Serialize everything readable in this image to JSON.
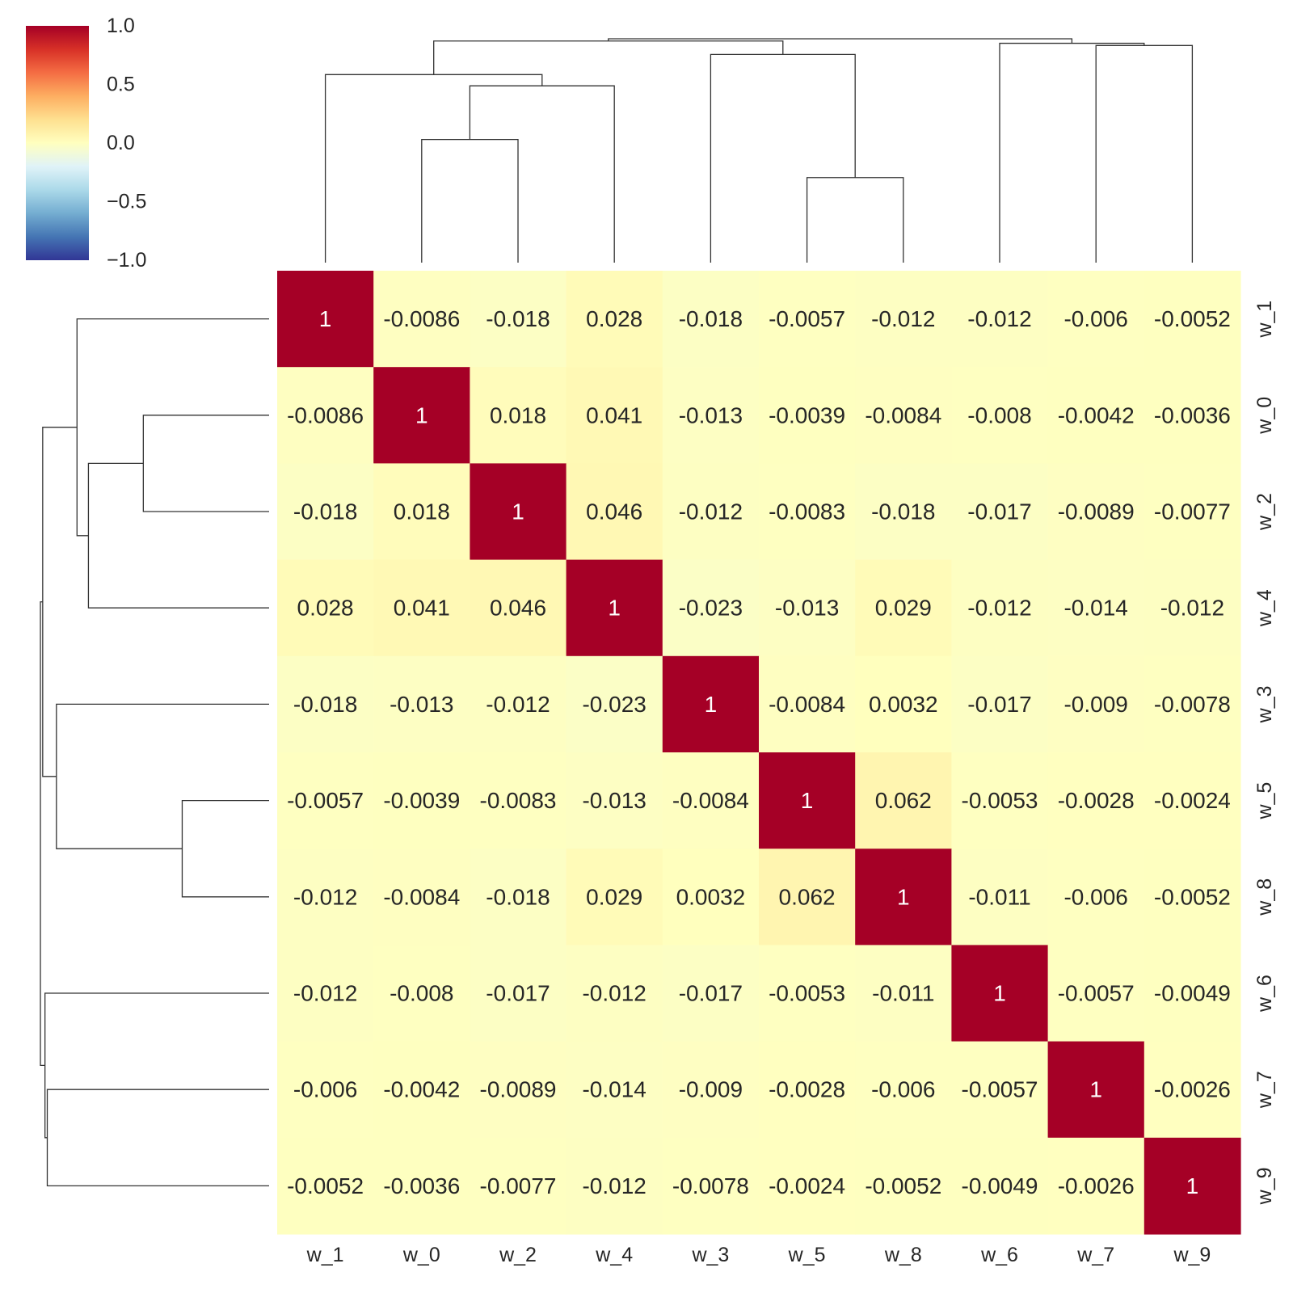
{
  "chart_data": {
    "type": "heatmap",
    "subtype": "clustermap",
    "labels": [
      "w_1",
      "w_0",
      "w_2",
      "w_4",
      "w_3",
      "w_5",
      "w_8",
      "w_6",
      "w_7",
      "w_9"
    ],
    "row_labels": [
      "w_1",
      "w_0",
      "w_2",
      "w_4",
      "w_3",
      "w_5",
      "w_8",
      "w_6",
      "w_7",
      "w_9"
    ],
    "col_labels": [
      "w_1",
      "w_0",
      "w_2",
      "w_4",
      "w_3",
      "w_5",
      "w_8",
      "w_6",
      "w_7",
      "w_9"
    ],
    "values": [
      [
        1,
        -0.0086,
        -0.018,
        0.028,
        -0.018,
        -0.0057,
        -0.012,
        -0.012,
        -0.006,
        -0.0052
      ],
      [
        -0.0086,
        1,
        0.018,
        0.041,
        -0.013,
        -0.0039,
        -0.0084,
        -0.008,
        -0.0042,
        -0.0036
      ],
      [
        -0.018,
        0.018,
        1,
        0.046,
        -0.012,
        -0.0083,
        -0.018,
        -0.017,
        -0.0089,
        -0.0077
      ],
      [
        0.028,
        0.041,
        0.046,
        1,
        -0.023,
        -0.013,
        0.029,
        -0.012,
        -0.014,
        -0.012
      ],
      [
        -0.018,
        -0.013,
        -0.012,
        -0.023,
        1,
        -0.0084,
        0.0032,
        -0.017,
        -0.009,
        -0.0078
      ],
      [
        -0.0057,
        -0.0039,
        -0.0083,
        -0.013,
        -0.0084,
        1,
        0.062,
        -0.0053,
        -0.0028,
        -0.0024
      ],
      [
        -0.012,
        -0.0084,
        -0.018,
        0.029,
        0.0032,
        0.062,
        1,
        -0.011,
        -0.006,
        -0.0052
      ],
      [
        -0.012,
        -0.008,
        -0.017,
        -0.012,
        -0.017,
        -0.0053,
        -0.011,
        1,
        -0.0057,
        -0.0049
      ],
      [
        -0.006,
        -0.0042,
        -0.0089,
        -0.014,
        -0.009,
        -0.0028,
        -0.006,
        -0.0057,
        1,
        -0.0026
      ],
      [
        -0.0052,
        -0.0036,
        -0.0077,
        -0.012,
        -0.0078,
        -0.0024,
        -0.0052,
        -0.0049,
        -0.0026,
        1
      ]
    ],
    "value_labels": [
      [
        "1",
        "-0.0086",
        "-0.018",
        "0.028",
        "-0.018",
        "-0.0057",
        "-0.012",
        "-0.012",
        "-0.006",
        "-0.0052"
      ],
      [
        "-0.0086",
        "1",
        "0.018",
        "0.041",
        "-0.013",
        "-0.0039",
        "-0.0084",
        "-0.008",
        "-0.0042",
        "-0.0036"
      ],
      [
        "-0.018",
        "0.018",
        "1",
        "0.046",
        "-0.012",
        "-0.0083",
        "-0.018",
        "-0.017",
        "-0.0089",
        "-0.0077"
      ],
      [
        "0.028",
        "0.041",
        "0.046",
        "1",
        "-0.023",
        "-0.013",
        "0.029",
        "-0.012",
        "-0.014",
        "-0.012"
      ],
      [
        "-0.018",
        "-0.013",
        "-0.012",
        "-0.023",
        "1",
        "-0.0084",
        "0.0032",
        "-0.017",
        "-0.009",
        "-0.0078"
      ],
      [
        "-0.0057",
        "-0.0039",
        "-0.0083",
        "-0.013",
        "-0.0084",
        "1",
        "0.062",
        "-0.0053",
        "-0.0028",
        "-0.0024"
      ],
      [
        "-0.012",
        "-0.0084",
        "-0.018",
        "0.029",
        "0.0032",
        "0.062",
        "1",
        "-0.011",
        "-0.006",
        "-0.0052"
      ],
      [
        "-0.012",
        "-0.008",
        "-0.017",
        "-0.012",
        "-0.017",
        "-0.0053",
        "-0.011",
        "1",
        "-0.0057",
        "-0.0049"
      ],
      [
        "-0.006",
        "-0.0042",
        "-0.0089",
        "-0.014",
        "-0.009",
        "-0.0028",
        "-0.006",
        "-0.0057",
        "1",
        "-0.0026"
      ],
      [
        "-0.0052",
        "-0.0036",
        "-0.0077",
        "-0.012",
        "-0.0078",
        "-0.0024",
        "-0.0052",
        "-0.0049",
        "-0.0026",
        "1"
      ]
    ],
    "colorbar": {
      "range": [
        -1.0,
        1.0
      ],
      "ticks": [
        1.0,
        0.5,
        0.0,
        -0.5,
        -1.0
      ],
      "tick_labels": [
        "1.0",
        "0.5",
        "0.0",
        "−0.5",
        "−1.0"
      ],
      "colormap": "RdYlBu_r",
      "position": "top-left"
    },
    "dendrogram": {
      "merges": [
        {
          "a": "w_0",
          "b": "w_2",
          "height": 0.955
        },
        {
          "a": "w_5",
          "b": "w_8",
          "height": 0.938
        },
        {
          "a": "w_0,w_2",
          "b": "w_4",
          "height": 0.979
        },
        {
          "a": "w_1",
          "b": "w_0,w_2,w_4",
          "height": 0.984
        },
        {
          "a": "w_3",
          "b": "w_5,w_8",
          "height": 0.993
        },
        {
          "a": "w_7",
          "b": "w_9",
          "height": 0.997
        },
        {
          "a": "w_6",
          "b": "w_7,w_9",
          "height": 0.998
        },
        {
          "a": "w_1,w_0,w_2,w_4",
          "b": "w_3,w_5,w_8",
          "height": 0.999
        },
        {
          "a": "w_1,w_0,w_2,w_4,w_3,w_5,w_8",
          "b": "w_6,w_7,w_9",
          "height": 1.0
        }
      ]
    },
    "xlabel": "",
    "ylabel": "",
    "title": ""
  }
}
